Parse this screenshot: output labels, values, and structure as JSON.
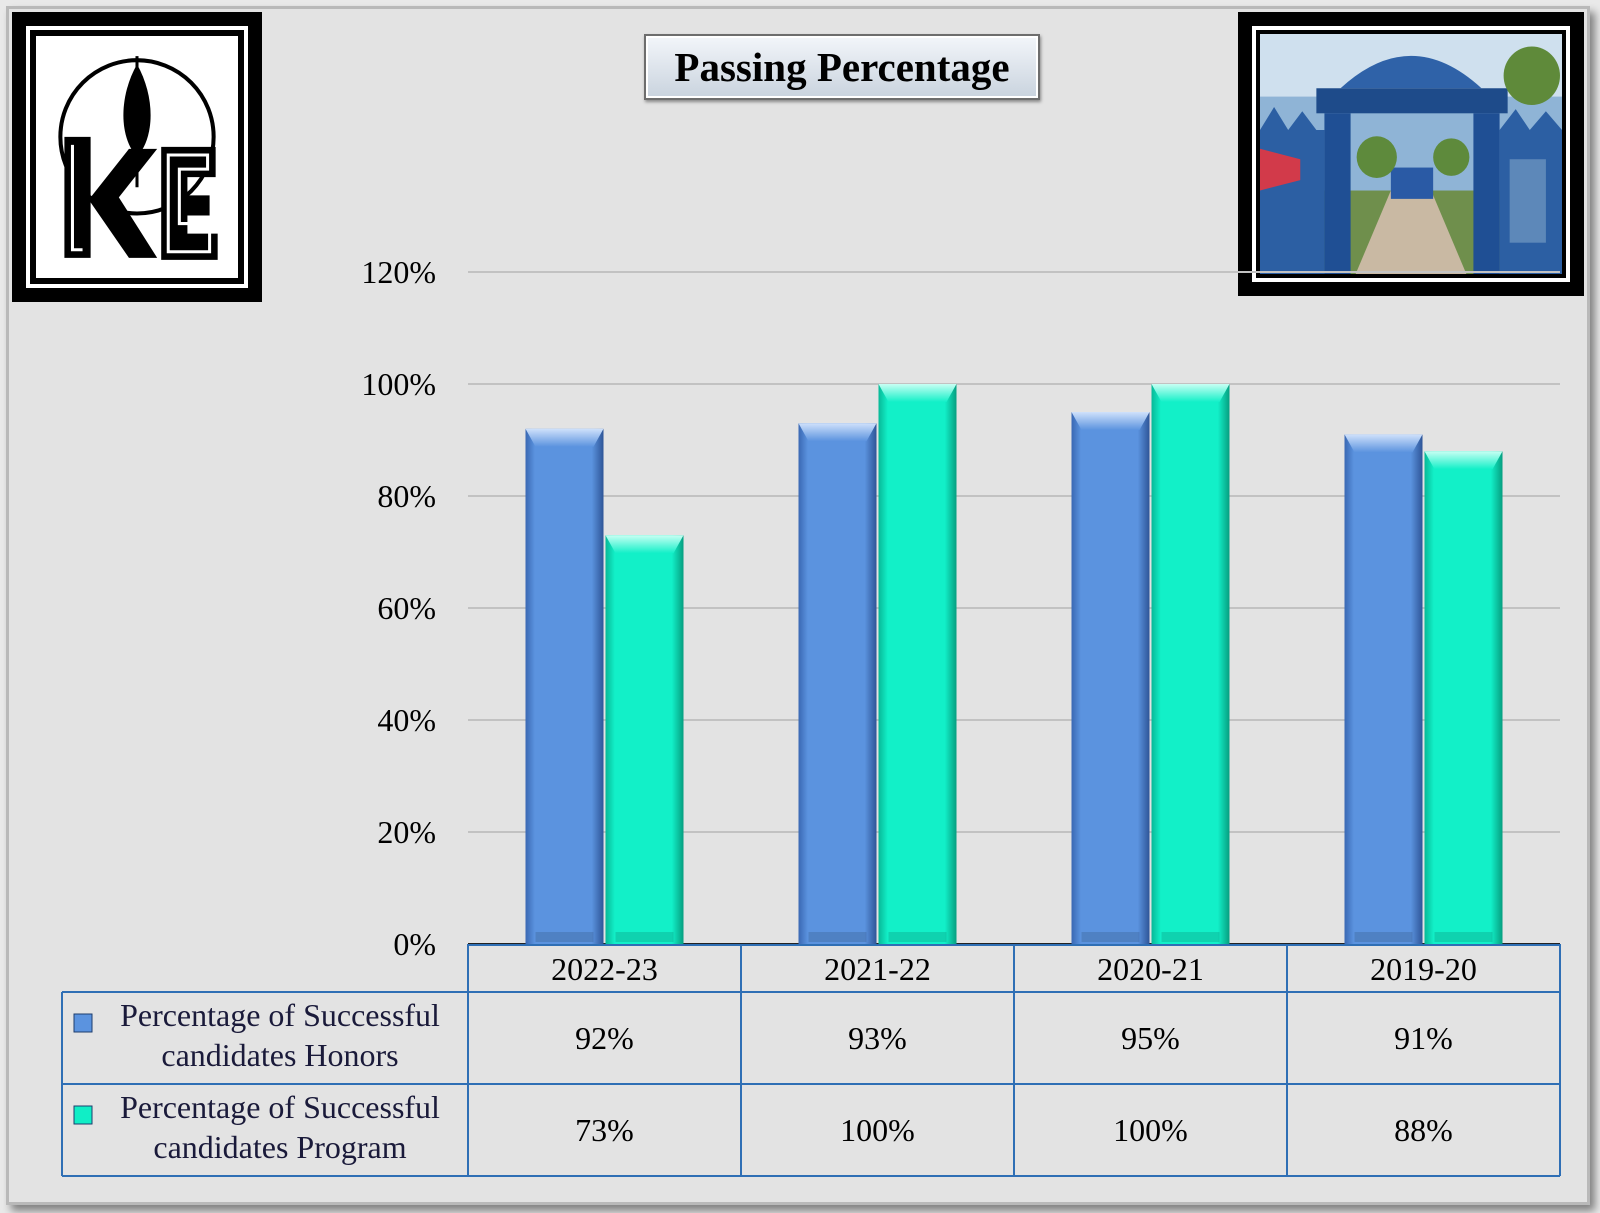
{
  "chart_data": {
    "type": "bar",
    "title": "Passing Percentage",
    "categories": [
      "2022-23",
      "2021-22",
      "2020-21",
      "2019-20"
    ],
    "series": [
      {
        "name": "Percentage of Successful candidates Honors",
        "legend_lines": [
          "Percentage of Successful",
          "candidates Honors"
        ],
        "values": [
          92,
          93,
          95,
          91
        ],
        "labels": [
          "92%",
          "93%",
          "95%",
          "91%"
        ],
        "color": "#5b93df"
      },
      {
        "name": "Percentage of Successful candidates Program",
        "legend_lines": [
          "Percentage of Successful",
          "candidates Program"
        ],
        "values": [
          73,
          100,
          100,
          88
        ],
        "labels": [
          "73%",
          "100%",
          "100%",
          "88%"
        ],
        "color": "#10eec6"
      }
    ],
    "ylim": [
      0,
      120
    ],
    "yticks": [
      "0%",
      "20%",
      "40%",
      "60%",
      "80%",
      "100%",
      "120%"
    ],
    "grid": true,
    "legend": "data-table-left",
    "data_table": true
  },
  "colors": {
    "background": "#e3e3e3",
    "gridline": "#c2c2c2",
    "table_border": "#2f6fb5"
  },
  "images": {
    "logo": "college-logo-icon",
    "photo": "college-gate-photo"
  }
}
